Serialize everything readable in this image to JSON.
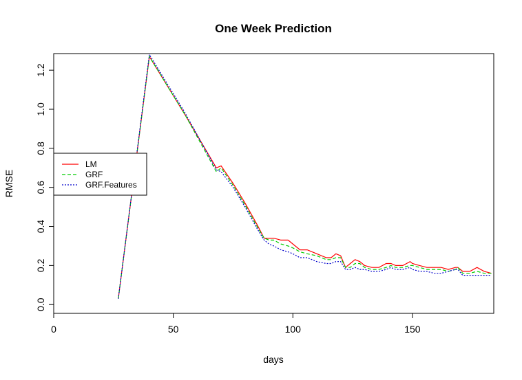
{
  "chart_data": {
    "type": "line",
    "title": "One Week Prediction",
    "xlabel": "days",
    "ylabel": "RMSE",
    "xlim": [
      0,
      184
    ],
    "ylim": [
      0,
      1.3
    ],
    "x_ticks": [
      0,
      50,
      100,
      150
    ],
    "y_ticks": [
      0.0,
      0.2,
      0.4,
      0.6,
      0.8,
      1.0,
      1.2
    ],
    "x_tick_labels": [
      "0",
      "50",
      "100",
      "150"
    ],
    "y_tick_labels": [
      "0.0",
      "0.2",
      "0.4",
      "0.6",
      "0.8",
      "1.0",
      "1.2"
    ],
    "grid": false,
    "legend_position": "left",
    "x": [
      27,
      40,
      55,
      68,
      70,
      75,
      80,
      85,
      88,
      90,
      92,
      95,
      98,
      100,
      103,
      106,
      110,
      114,
      116,
      118,
      120,
      122,
      124,
      126,
      128,
      130,
      133,
      136,
      139,
      141,
      143,
      146,
      149,
      150,
      153,
      156,
      159,
      162,
      165,
      168,
      169,
      171,
      174,
      177,
      180,
      183
    ],
    "series": [
      {
        "name": "LM",
        "color": "#ff0000",
        "dash": "solid",
        "values": [
          0.03,
          1.27,
          0.97,
          0.7,
          0.71,
          0.62,
          0.52,
          0.41,
          0.34,
          0.34,
          0.34,
          0.33,
          0.33,
          0.31,
          0.28,
          0.28,
          0.26,
          0.24,
          0.24,
          0.26,
          0.25,
          0.19,
          0.21,
          0.23,
          0.22,
          0.2,
          0.19,
          0.19,
          0.21,
          0.21,
          0.2,
          0.2,
          0.22,
          0.21,
          0.2,
          0.19,
          0.19,
          0.19,
          0.18,
          0.19,
          0.19,
          0.17,
          0.17,
          0.19,
          0.17,
          0.16
        ]
      },
      {
        "name": "GRF",
        "color": "#00cc00",
        "dash": "dashed",
        "values": [
          0.03,
          1.27,
          0.97,
          0.68,
          0.7,
          0.61,
          0.51,
          0.4,
          0.34,
          0.33,
          0.33,
          0.31,
          0.3,
          0.29,
          0.27,
          0.26,
          0.25,
          0.23,
          0.23,
          0.24,
          0.24,
          0.19,
          0.19,
          0.21,
          0.21,
          0.19,
          0.18,
          0.18,
          0.19,
          0.2,
          0.19,
          0.19,
          0.2,
          0.2,
          0.19,
          0.18,
          0.18,
          0.18,
          0.17,
          0.18,
          0.19,
          0.16,
          0.16,
          0.17,
          0.16,
          0.16
        ]
      },
      {
        "name": "GRF.Features",
        "color": "#0000cc",
        "dash": "dotted",
        "values": [
          0.03,
          1.28,
          0.98,
          0.69,
          0.68,
          0.6,
          0.5,
          0.39,
          0.33,
          0.31,
          0.3,
          0.28,
          0.27,
          0.26,
          0.24,
          0.24,
          0.22,
          0.21,
          0.21,
          0.22,
          0.22,
          0.18,
          0.18,
          0.19,
          0.18,
          0.18,
          0.17,
          0.17,
          0.18,
          0.19,
          0.18,
          0.18,
          0.19,
          0.18,
          0.17,
          0.17,
          0.16,
          0.16,
          0.17,
          0.18,
          0.18,
          0.15,
          0.15,
          0.15,
          0.15,
          0.15
        ]
      }
    ]
  }
}
